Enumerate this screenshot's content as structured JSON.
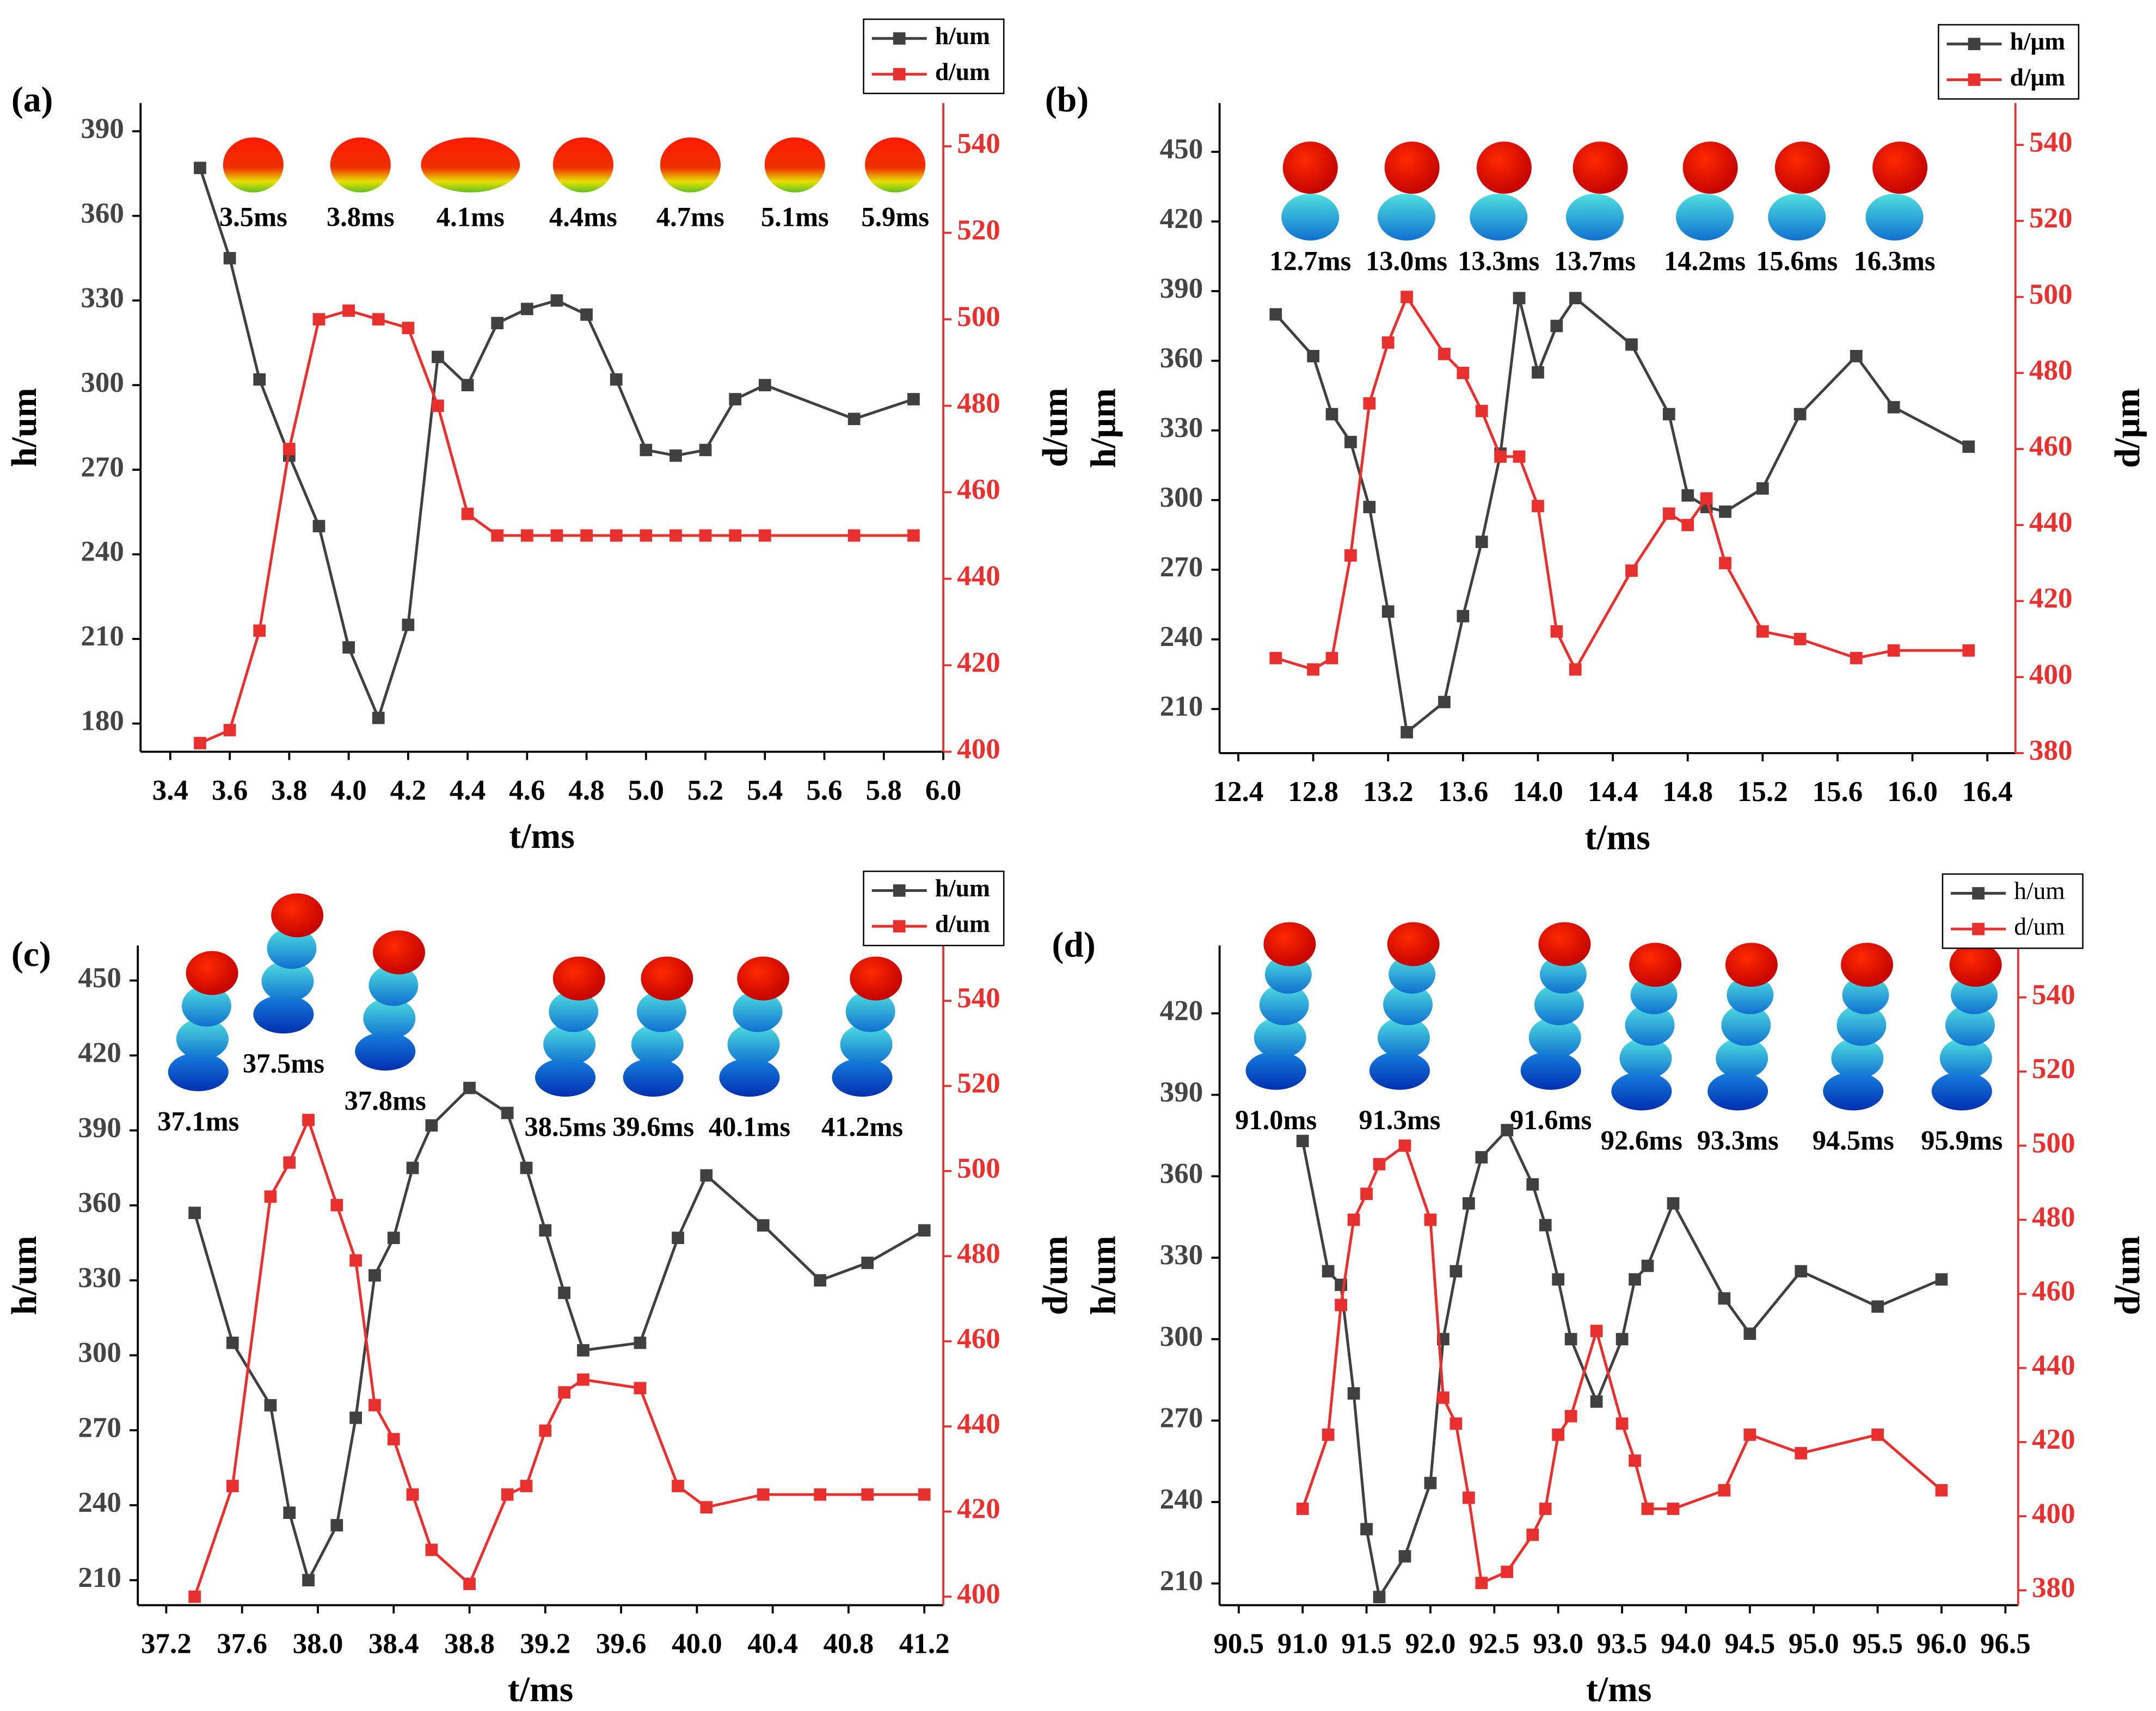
{
  "chart_data": [
    {
      "type": "line",
      "label": "(a)",
      "xlabel": "t/ms",
      "ylabel": "h/um",
      "y2label": "d/um",
      "annotations": [
        "3.5ms",
        "3.8ms",
        "4.1ms",
        "4.4ms",
        "4.7ms",
        "5.1ms",
        "5.9ms"
      ],
      "x": [
        3.5,
        3.6,
        3.7,
        3.8,
        3.9,
        4.0,
        4.1,
        4.2,
        4.3,
        4.4,
        4.5,
        4.6,
        4.7,
        4.8,
        4.9,
        5.0,
        5.1,
        5.2,
        5.3,
        5.4,
        5.7,
        5.9
      ],
      "series": [
        {
          "name": "h/um",
          "color": "#404040",
          "values": [
            377,
            345,
            302,
            275,
            250,
            207,
            182,
            215,
            310,
            300,
            322,
            327,
            330,
            325,
            302,
            277,
            275,
            277,
            295,
            300,
            288,
            295
          ]
        },
        {
          "name": "d/um",
          "color": "#e8302f",
          "axis": "y2",
          "values": [
            402,
            405,
            428,
            470,
            500,
            502,
            500,
            498,
            480,
            455,
            450,
            450,
            450,
            450,
            450,
            450,
            450,
            450,
            450,
            450,
            450,
            450
          ]
        }
      ],
      "xlim": [
        3.3,
        6.0
      ],
      "xticks": [
        3.4,
        3.6,
        3.8,
        {
          "value": 4,
          "label": "4.0"
        },
        4.2,
        4.4,
        4.6,
        4.8,
        {
          "value": 5,
          "label": "5.0"
        },
        5.2,
        5.4,
        5.6,
        5.8,
        {
          "value": 6,
          "label": "6.0"
        }
      ],
      "ylim": [
        170,
        400
      ],
      "yticks": [
        180,
        210,
        240,
        270,
        300,
        330,
        360,
        390
      ],
      "y2lim": [
        400,
        550
      ],
      "y2ticks": [
        400,
        420,
        440,
        460,
        480,
        500,
        520,
        540
      ]
    },
    {
      "type": "line",
      "label": "(b)",
      "xlabel": "t/ms",
      "ylabel": "h/μm",
      "y2label": "d/μm",
      "annotations": [
        "12.7ms",
        "13.0ms",
        "13.3ms",
        "13.7ms",
        "14.2ms",
        "15.6ms",
        "16.3ms"
      ],
      "x": [
        12.6,
        12.8,
        12.9,
        13.0,
        13.1,
        13.2,
        13.3,
        13.5,
        13.6,
        13.7,
        13.8,
        13.9,
        14.0,
        14.1,
        14.2,
        14.5,
        14.7,
        14.8,
        14.9,
        15.0,
        15.2,
        15.4,
        15.7,
        15.9,
        16.3
      ],
      "series": [
        {
          "name": "h/μm",
          "color": "#404040",
          "values": [
            380,
            362,
            337,
            325,
            297,
            252,
            200,
            213,
            250,
            282,
            320,
            387,
            355,
            375,
            387,
            367,
            337,
            302,
            297,
            295,
            305,
            337,
            362,
            340,
            323
          ]
        },
        {
          "name": "d/μm",
          "color": "#e8302f",
          "axis": "y2",
          "values": [
            405,
            402,
            405,
            432,
            472,
            488,
            500,
            485,
            480,
            470,
            458,
            458,
            445,
            412,
            402,
            428,
            443,
            440,
            447,
            430,
            412,
            410,
            405,
            407,
            407
          ]
        }
      ],
      "xlim": [
        12.3,
        16.55
      ],
      "xticks": [
        12.4,
        12.8,
        13.2,
        13.6,
        {
          "value": 14,
          "label": "14.0"
        },
        14.4,
        14.8,
        15.2,
        15.6,
        {
          "value": 16,
          "label": "16.0"
        },
        16.4
      ],
      "ylim": [
        191,
        471
      ],
      "yticks": [
        210,
        240,
        270,
        300,
        330,
        360,
        390,
        420,
        450
      ],
      "y2lim": [
        380,
        551
      ],
      "y2ticks": [
        380,
        400,
        420,
        440,
        460,
        480,
        500,
        520,
        540
      ]
    },
    {
      "type": "line",
      "label": "(c)",
      "xlabel": "t/ms",
      "ylabel": "h/um",
      "y2label": "d/um",
      "annotations": [
        "37.1ms",
        "37.5ms",
        "37.8ms",
        "38.5ms",
        "39.6ms",
        "40.1ms",
        "41.2ms"
      ],
      "x": [
        37.35,
        37.55,
        37.75,
        37.85,
        37.95,
        38.1,
        38.2,
        38.3,
        38.4,
        38.5,
        38.6,
        38.8,
        39.0,
        39.1,
        39.2,
        39.3,
        39.4,
        39.7,
        39.9,
        40.05,
        40.35,
        40.65,
        40.9,
        41.2
      ],
      "series": [
        {
          "name": "h/um",
          "color": "#404040",
          "values": [
            357,
            305,
            280,
            237,
            210,
            232,
            275,
            332,
            347,
            375,
            392,
            407,
            397,
            375,
            350,
            325,
            302,
            305,
            347,
            372,
            352,
            330,
            337,
            350
          ]
        },
        {
          "name": "d/um",
          "color": "#e8302f",
          "axis": "y2",
          "values": [
            400,
            426,
            494,
            502,
            512,
            492,
            479,
            445,
            437,
            424,
            411,
            403,
            424,
            426,
            439,
            448,
            451,
            449,
            426,
            421,
            424,
            424,
            424,
            424
          ]
        }
      ],
      "xlim": [
        37.05,
        41.3
      ],
      "xticks": [
        37.2,
        37.6,
        {
          "value": 38,
          "label": "38.0"
        },
        38.4,
        38.8,
        39.2,
        39.6,
        {
          "value": 40,
          "label": "40.0"
        },
        40.4,
        40.8,
        41.2
      ],
      "ylim": [
        200,
        464
      ],
      "yticks": [
        210,
        240,
        270,
        300,
        330,
        360,
        390,
        420,
        450
      ],
      "y2lim": [
        398,
        553
      ],
      "y2ticks": [
        400,
        420,
        440,
        460,
        480,
        500,
        520,
        540
      ]
    },
    {
      "type": "line",
      "label": "(d)",
      "xlabel": "t/ms",
      "ylabel": "h/um",
      "y2label": "d/um",
      "annotations": [
        "91.0ms",
        "91.3ms",
        "91.6ms",
        "92.6ms",
        "93.3ms",
        "94.5ms",
        "95.9ms"
      ],
      "x": [
        91.0,
        91.2,
        91.3,
        91.4,
        91.5,
        91.6,
        91.8,
        92.0,
        92.1,
        92.2,
        92.3,
        92.4,
        92.6,
        92.8,
        92.9,
        93.0,
        93.1,
        93.3,
        93.5,
        93.6,
        93.7,
        93.9,
        94.3,
        94.5,
        94.9,
        95.5,
        96.0
      ],
      "series": [
        {
          "name": "h/um",
          "color": "#404040",
          "values": [
            373,
            325,
            320,
            280,
            230,
            205,
            220,
            247,
            300,
            325,
            350,
            367,
            377,
            357,
            342,
            322,
            300,
            277,
            300,
            322,
            327,
            350,
            315,
            302,
            325,
            312,
            322
          ]
        },
        {
          "name": "d/um",
          "color": "#e8302f",
          "axis": "y2",
          "values": [
            402,
            422,
            457,
            480,
            487,
            495,
            500,
            480,
            432,
            425,
            405,
            382,
            385,
            395,
            402,
            422,
            427,
            450,
            425,
            415,
            402,
            402,
            407,
            422,
            417,
            422,
            407
          ]
        }
      ],
      "xlim": [
        90.35,
        96.6
      ],
      "xticks": [
        90.5,
        {
          "value": 91,
          "label": "91.0"
        },
        91.5,
        {
          "value": 92,
          "label": "92.0"
        },
        92.5,
        {
          "value": 93,
          "label": "93.0"
        },
        93.5,
        {
          "value": 94,
          "label": "94.0"
        },
        94.5,
        {
          "value": 95,
          "label": "95.0"
        },
        95.5,
        {
          "value": 96,
          "label": "96.0"
        },
        96.5
      ],
      "ylim": [
        202,
        445
      ],
      "yticks": [
        210,
        240,
        270,
        300,
        330,
        360,
        390,
        420
      ],
      "y2lim": [
        376,
        554
      ],
      "y2ticks": [
        380,
        400,
        420,
        440,
        460,
        480,
        500,
        520,
        540
      ]
    }
  ]
}
